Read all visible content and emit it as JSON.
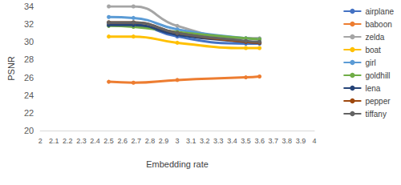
{
  "chart_data": {
    "type": "line",
    "x_label": "Embedding rate",
    "y_label": "PSNR",
    "x": [
      2.5,
      2.68,
      3.0,
      3.5,
      3.6
    ],
    "series": [
      {
        "name": "airplane",
        "color": "#4472c4",
        "values": [
          32.1,
          32.0,
          30.6,
          29.8,
          29.8
        ]
      },
      {
        "name": "baboon",
        "color": "#ed7d31",
        "values": [
          25.5,
          25.4,
          25.7,
          26.0,
          26.1
        ]
      },
      {
        "name": "zelda",
        "color": "#a5a5a5",
        "values": [
          34.0,
          34.0,
          31.8,
          30.4,
          30.4
        ]
      },
      {
        "name": "boat",
        "color": "#ffc000",
        "values": [
          30.6,
          30.6,
          29.9,
          29.3,
          29.3
        ]
      },
      {
        "name": "girl",
        "color": "#5b9bd5",
        "values": [
          32.8,
          32.7,
          31.4,
          30.4,
          30.3
        ]
      },
      {
        "name": "goldhill",
        "color": "#70ad47",
        "values": [
          31.8,
          31.7,
          31.1,
          30.4,
          30.3
        ]
      },
      {
        "name": "lena",
        "color": "#264478",
        "values": [
          31.9,
          31.9,
          30.8,
          30.0,
          29.9
        ]
      },
      {
        "name": "pepper",
        "color": "#9e480e",
        "values": [
          32.2,
          32.2,
          31.0,
          30.0,
          29.9
        ]
      },
      {
        "name": "tiffany",
        "color": "#636363",
        "values": [
          32.2,
          32.2,
          31.0,
          30.1,
          30.0
        ]
      }
    ],
    "xlim": [
      2,
      4
    ],
    "xticks": [
      2,
      2.1,
      2.2,
      2.3,
      2.4,
      2.5,
      2.6,
      2.7,
      2.8,
      2.9,
      3,
      3.1,
      3.2,
      3.3,
      3.4,
      3.5,
      3.6,
      3.7,
      3.8,
      3.9,
      4
    ],
    "ylim": [
      20,
      34
    ],
    "yticks": [
      20,
      22,
      24,
      26,
      28,
      30,
      32,
      34
    ],
    "grid": false,
    "legend": "right",
    "marker": "circle",
    "line_style": "smooth"
  }
}
